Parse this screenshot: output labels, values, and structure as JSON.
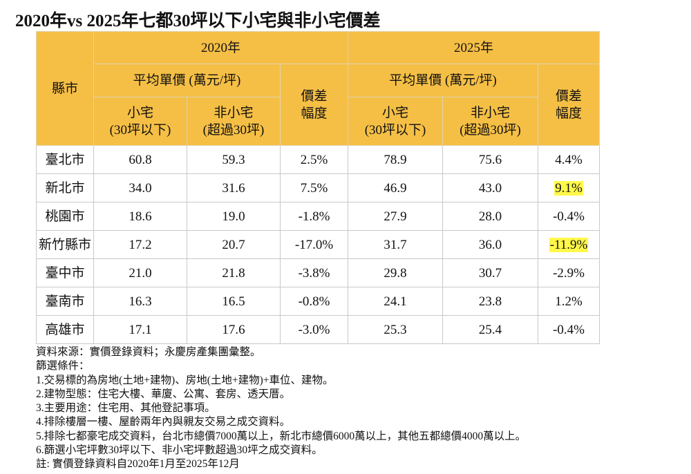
{
  "title": "2020年vs 2025年七都30坪以下小宅與非小宅價差",
  "header": {
    "city": "縣市",
    "y2020": "2020年",
    "y2025": "2025年",
    "avg_price": "平均單價 (萬元/坪)",
    "diff_1": "價差",
    "diff_2": "幅度",
    "small_1": "小宅",
    "small_2": "(30坪以下)",
    "nonsmall_1": "非小宅",
    "nonsmall_2": "(超過30坪)"
  },
  "rows": [
    {
      "city": "臺北市",
      "s2020": "60.8",
      "n2020": "59.3",
      "d2020": "2.5%",
      "s2025": "78.9",
      "n2025": "75.6",
      "d2025": "4.4%",
      "highlight": false
    },
    {
      "city": "新北市",
      "s2020": "34.0",
      "n2020": "31.6",
      "d2020": "7.5%",
      "s2025": "46.9",
      "n2025": "43.0",
      "d2025": "9.1%",
      "highlight": true
    },
    {
      "city": "桃園市",
      "s2020": "18.6",
      "n2020": "19.0",
      "d2020": "-1.8%",
      "s2025": "27.9",
      "n2025": "28.0",
      "d2025": "-0.4%",
      "highlight": false
    },
    {
      "city": "新竹縣市",
      "s2020": "17.2",
      "n2020": "20.7",
      "d2020": "-17.0%",
      "s2025": "31.7",
      "n2025": "36.0",
      "d2025": "-11.9%",
      "highlight": true
    },
    {
      "city": "臺中市",
      "s2020": "21.0",
      "n2020": "21.8",
      "d2020": "-3.8%",
      "s2025": "29.8",
      "n2025": "30.7",
      "d2025": "-2.9%",
      "highlight": false
    },
    {
      "city": "臺南市",
      "s2020": "16.3",
      "n2020": "16.5",
      "d2020": "-0.8%",
      "s2025": "24.1",
      "n2025": "23.8",
      "d2025": "1.2%",
      "highlight": false
    },
    {
      "city": "高雄市",
      "s2020": "17.1",
      "n2020": "17.6",
      "d2020": "-3.0%",
      "s2025": "25.3",
      "n2025": "25.4",
      "d2025": "-0.4%",
      "highlight": false
    }
  ],
  "notes": [
    "資料來源：實價登錄資料；永慶房產集團彙整。",
    "篩選條件：",
    "1.交易標的為房地(土地+建物)、房地(土地+建物)+車位、建物。",
    "2.建物型態：住宅大樓、華廈、公寓、套房、透天厝。",
    "3.主要用途：住宅用、其他登記事項。",
    "4.排除樓層一樓、屋齡兩年內與親友交易之成交資料。",
    "5.排除七都豪宅成交資料，台北市總價7000萬以上，新北市總價6000萬以上，其他五都總價4000萬以上。",
    "6.篩選小宅坪數30坪以下、非小宅坪數超過30坪之成交資料。",
    "註: 實價登錄資料自2020年1月至2025年12月"
  ],
  "colors": {
    "header_bg": "#f5bf45",
    "highlight": "#fff84a"
  }
}
